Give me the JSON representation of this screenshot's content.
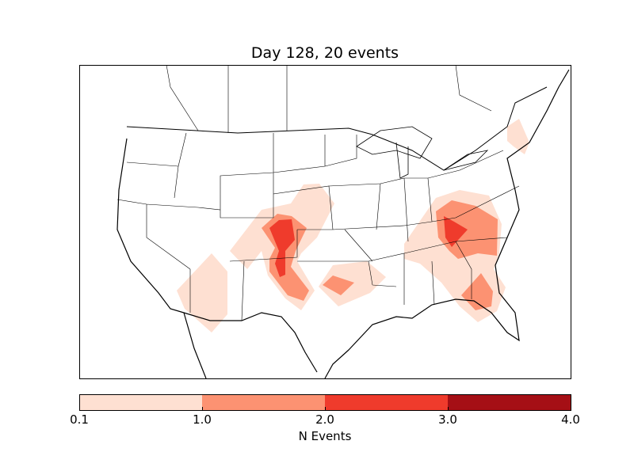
{
  "title": "Day 128, 20 events",
  "colorbar": {
    "label": "N Events",
    "ticks": [
      "0.1",
      "1.0",
      "2.0",
      "3.0",
      "4.0"
    ],
    "levels": [
      0.1,
      1.0,
      2.0,
      3.0,
      4.0
    ],
    "colors": [
      "#fee0d2",
      "#fc9272",
      "#ef3b2c",
      "#a50f15"
    ]
  }
}
